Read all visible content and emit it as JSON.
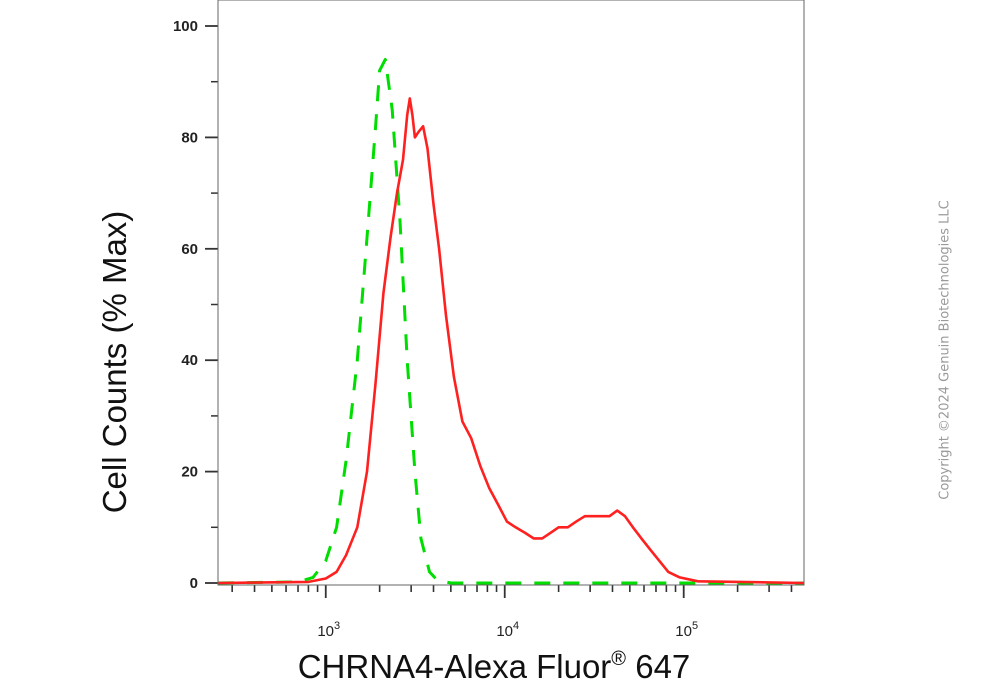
{
  "chart_data": {
    "type": "line",
    "xlabel": "CHRNA4-Alexa Fluor",
    "xlabel_superscript": "®",
    "xlabel_suffix": " 647",
    "ylabel": "Cell Counts (% Max)",
    "x_scale": "log",
    "xlim": [
      250,
      470000
    ],
    "ylim": [
      0,
      100
    ],
    "x_major_ticks": [
      {
        "value": 1000,
        "base": "10",
        "exp": "3"
      },
      {
        "value": 10000,
        "base": "10",
        "exp": "4"
      },
      {
        "value": 100000,
        "base": "10",
        "exp": "5"
      }
    ],
    "y_ticks": [
      {
        "value": 0,
        "label": "0"
      },
      {
        "value": 20,
        "label": "20"
      },
      {
        "value": 40,
        "label": "40"
      },
      {
        "value": 60,
        "label": "60"
      },
      {
        "value": 80,
        "label": "80"
      },
      {
        "value": 100,
        "label": "100"
      }
    ],
    "grid": false,
    "series": [
      {
        "color": "#00dd00",
        "style": "dashed",
        "x": [
          250,
          700,
          850,
          1000,
          1150,
          1300,
          1500,
          1700,
          1900,
          2000,
          2150,
          2350,
          2600,
          2850,
          3150,
          3400,
          3800,
          4200,
          5000,
          10000,
          100000,
          470000
        ],
        "y": [
          0,
          0.2,
          1,
          4,
          10,
          22,
          40,
          62,
          82,
          92,
          94,
          85,
          65,
          40,
          20,
          8,
          2,
          0.5,
          0,
          0,
          0,
          0
        ]
      },
      {
        "color": "#ff2020",
        "style": "solid",
        "x": [
          250,
          800,
          1000,
          1150,
          1300,
          1500,
          1700,
          1900,
          2100,
          2300,
          2500,
          2700,
          2850,
          2950,
          3050,
          3150,
          3300,
          3500,
          3700,
          4000,
          4300,
          4700,
          5200,
          5800,
          6500,
          7300,
          8200,
          9200,
          10300,
          11500,
          13000,
          14500,
          16200,
          18000,
          20000,
          22500,
          25000,
          28000,
          31000,
          34500,
          38500,
          42500,
          47000,
          52000,
          58000,
          65000,
          73000,
          82000,
          95000,
          120000,
          470000
        ],
        "y": [
          0,
          0.2,
          0.8,
          2,
          5,
          10,
          20,
          36,
          52,
          62,
          70,
          76,
          84,
          87,
          84,
          80,
          81,
          82,
          78,
          68,
          60,
          48,
          37,
          29,
          26,
          21,
          17,
          14,
          11,
          10,
          9,
          8,
          8,
          9,
          10,
          10,
          11,
          12,
          12,
          12,
          12,
          13,
          12,
          10,
          8,
          6,
          4,
          2,
          1,
          0.3,
          0
        ]
      }
    ]
  },
  "copyright": "Copyright ©2024 Genuin Biotechnologies LLC"
}
